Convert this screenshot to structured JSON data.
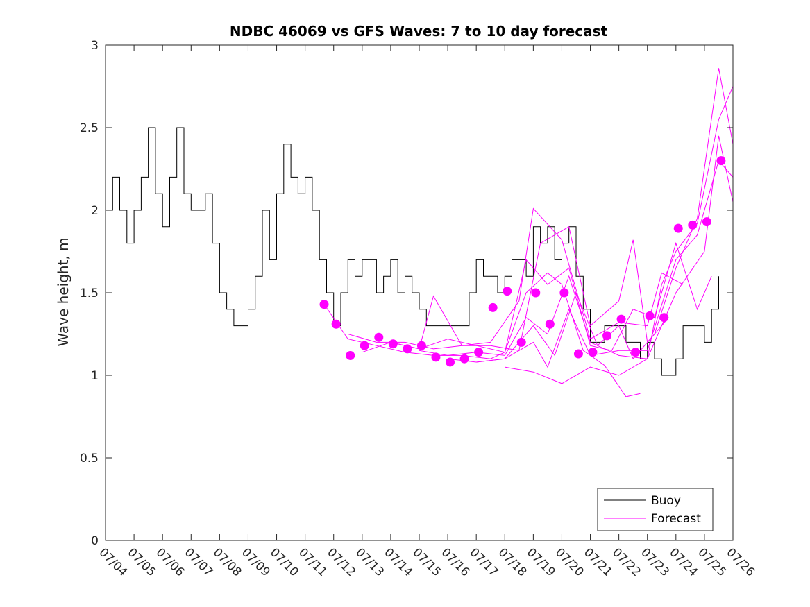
{
  "chart_data": {
    "type": "line",
    "title": "NDBC 46069 vs GFS Waves: 7 to 10 day forecast",
    "xlabel": "",
    "ylabel": "Wave height, m",
    "xlim": [
      "07/04",
      "07/26"
    ],
    "ylim": [
      0,
      3
    ],
    "x_ticks": [
      "07/04",
      "07/05",
      "07/06",
      "07/07",
      "07/08",
      "07/09",
      "07/10",
      "07/11",
      "07/12",
      "07/13",
      "07/14",
      "07/15",
      "07/16",
      "07/17",
      "07/18",
      "07/19",
      "07/20",
      "07/21",
      "07/22",
      "07/23",
      "07/24",
      "07/25",
      "07/26"
    ],
    "y_ticks": [
      0,
      0.5,
      1,
      1.5,
      2,
      2.5,
      3
    ],
    "grid": false,
    "legend": {
      "placement": "bottom-right",
      "entries": [
        "Buoy",
        "Forecast"
      ]
    },
    "series": [
      {
        "name": "Buoy",
        "color": "#000000",
        "style": "line",
        "x": [
          "07/04 00:00",
          "07/04 06:00",
          "07/04 12:00",
          "07/04 18:00",
          "07/05 00:00",
          "07/05 06:00",
          "07/05 12:00",
          "07/05 18:00",
          "07/06 00:00",
          "07/06 06:00",
          "07/06 12:00",
          "07/06 18:00",
          "07/07 00:00",
          "07/07 06:00",
          "07/07 12:00",
          "07/07 18:00",
          "07/08 00:00",
          "07/08 06:00",
          "07/08 12:00",
          "07/08 18:00",
          "07/09 00:00",
          "07/09 06:00",
          "07/09 12:00",
          "07/09 18:00",
          "07/10 00:00",
          "07/10 06:00",
          "07/10 12:00",
          "07/10 18:00",
          "07/11 00:00",
          "07/11 06:00",
          "07/11 12:00",
          "07/11 18:00",
          "07/12 00:00",
          "07/12 06:00",
          "07/12 12:00",
          "07/12 18:00",
          "07/13 00:00",
          "07/13 06:00",
          "07/13 12:00",
          "07/13 18:00",
          "07/14 00:00",
          "07/14 06:00",
          "07/14 12:00",
          "07/14 18:00",
          "07/15 00:00",
          "07/15 06:00",
          "07/15 12:00",
          "07/15 18:00",
          "07/16 00:00",
          "07/16 06:00",
          "07/16 12:00",
          "07/16 18:00",
          "07/17 00:00",
          "07/17 06:00",
          "07/17 12:00",
          "07/17 18:00",
          "07/18 00:00",
          "07/18 06:00",
          "07/18 12:00",
          "07/18 18:00",
          "07/19 00:00",
          "07/19 06:00",
          "07/19 12:00",
          "07/19 18:00",
          "07/20 00:00",
          "07/20 06:00",
          "07/20 12:00",
          "07/20 18:00",
          "07/21 00:00",
          "07/21 06:00",
          "07/21 12:00",
          "07/21 18:00",
          "07/22 00:00",
          "07/22 06:00",
          "07/22 12:00",
          "07/22 18:00",
          "07/23 00:00",
          "07/23 06:00",
          "07/23 12:00",
          "07/23 18:00",
          "07/24 00:00",
          "07/24 06:00",
          "07/24 12:00",
          "07/24 18:00",
          "07/25 00:00",
          "07/25 06:00",
          "07/25 12:00"
        ],
        "y": [
          2.0,
          2.2,
          2.0,
          1.8,
          2.0,
          2.2,
          2.5,
          2.1,
          1.9,
          2.2,
          2.5,
          2.1,
          2.0,
          2.0,
          2.1,
          1.8,
          1.5,
          1.4,
          1.3,
          1.3,
          1.4,
          1.6,
          2.0,
          1.7,
          2.1,
          2.4,
          2.2,
          2.1,
          2.2,
          2.0,
          1.7,
          1.5,
          1.3,
          1.5,
          1.7,
          1.6,
          1.7,
          1.7,
          1.5,
          1.6,
          1.7,
          1.5,
          1.6,
          1.5,
          1.4,
          1.3,
          1.3,
          1.3,
          1.3,
          1.3,
          1.3,
          1.5,
          1.7,
          1.6,
          1.6,
          1.5,
          1.6,
          1.7,
          1.7,
          1.6,
          1.9,
          1.8,
          1.9,
          1.7,
          1.8,
          1.9,
          1.6,
          1.4,
          1.2,
          1.2,
          1.3,
          1.3,
          1.3,
          1.2,
          1.2,
          1.1,
          1.2,
          1.1,
          1.0,
          1.0,
          1.1,
          1.3,
          1.3,
          1.3,
          1.2,
          1.4,
          1.6
        ]
      },
      {
        "name": "Forecast",
        "color": "#ff00ff",
        "style": "line",
        "x": [
          "07/11 16:00",
          "07/12 12:00",
          "07/13 12:00",
          "07/14 12:00",
          "07/15 12:00",
          "07/16 12:00",
          "07/17 12:00",
          "07/18 00:00",
          "07/18 18:00",
          "07/19 12:00",
          "07/20 00:00",
          "07/20 18:00",
          "07/21 12:00",
          "07/22 06:00",
          "07/22 18:00"
        ],
        "y": [
          1.43,
          1.22,
          1.18,
          1.14,
          1.12,
          1.12,
          1.1,
          1.14,
          1.5,
          1.62,
          1.55,
          1.15,
          1.06,
          0.87,
          0.89
        ]
      },
      {
        "name": "Forecast",
        "color": "#ff00ff",
        "style": "line",
        "x": [
          "07/12 12:00",
          "07/13 12:00",
          "07/14 12:00",
          "07/15 12:00",
          "07/16 12:00",
          "07/17 12:00",
          "07/18 12:00",
          "07/19 06:00",
          "07/20 06:00",
          "07/21 00:00",
          "07/22 00:00",
          "07/22 12:00",
          "07/23 00:00",
          "07/23 18:00"
        ],
        "y": [
          1.25,
          1.2,
          1.2,
          1.16,
          1.18,
          1.18,
          1.15,
          1.8,
          1.9,
          1.3,
          1.45,
          1.82,
          1.2,
          1.35
        ]
      },
      {
        "name": "Forecast",
        "color": "#ff00ff",
        "style": "line",
        "x": [
          "07/13 00:00",
          "07/14 00:00",
          "07/15 00:00",
          "07/15 12:00",
          "07/16 12:00",
          "07/17 12:00",
          "07/18 12:00",
          "07/19 00:00",
          "07/20 00:00",
          "07/21 00:00",
          "07/22 00:00",
          "07/23 00:00",
          "07/23 12:00",
          "07/24 06:00"
        ],
        "y": [
          1.14,
          1.2,
          1.16,
          1.48,
          1.18,
          1.2,
          1.45,
          2.01,
          1.82,
          1.22,
          1.32,
          1.3,
          1.62,
          1.55
        ]
      },
      {
        "name": "Forecast",
        "color": "#ff00ff",
        "style": "line",
        "x": [
          "07/14 00:00",
          "07/15 00:00",
          "07/16 00:00",
          "07/17 00:00",
          "07/18 00:00",
          "07/18 18:00",
          "07/19 12:00",
          "07/20 06:00",
          "07/21 00:00",
          "07/21 18:00",
          "07/22 12:00",
          "07/23 06:00",
          "07/24 00:00",
          "07/24 18:00",
          "07/25 06:00"
        ],
        "y": [
          1.2,
          1.16,
          1.22,
          1.18,
          1.14,
          1.7,
          1.55,
          1.65,
          1.18,
          1.15,
          1.4,
          1.35,
          1.8,
          1.4,
          1.6
        ]
      },
      {
        "name": "Forecast",
        "color": "#ff00ff",
        "style": "line",
        "x": [
          "07/15 00:00",
          "07/16 00:00",
          "07/17 00:00",
          "07/18 00:00",
          "07/18 18:00",
          "07/19 12:00",
          "07/20 06:00",
          "07/21 00:00",
          "07/22 00:00",
          "07/23 00:00",
          "07/23 12:00",
          "07/24 00:00",
          "07/24 18:00",
          "07/25 12:00",
          "07/26 00:00"
        ],
        "y": [
          1.15,
          1.12,
          1.14,
          1.12,
          1.35,
          1.25,
          1.6,
          1.2,
          1.12,
          1.1,
          1.55,
          1.75,
          1.92,
          2.55,
          2.75
        ]
      },
      {
        "name": "Forecast",
        "color": "#ff00ff",
        "style": "line",
        "x": [
          "07/16 00:00",
          "07/17 00:00",
          "07/18 00:00",
          "07/19 00:00",
          "07/19 18:00",
          "07/20 12:00",
          "07/21 06:00",
          "07/22 00:00",
          "07/22 12:00",
          "07/23 06:00",
          "07/24 00:00",
          "07/24 18:00",
          "07/25 12:00",
          "07/26 00:00"
        ],
        "y": [
          1.1,
          1.08,
          1.1,
          1.3,
          1.12,
          1.5,
          1.18,
          1.3,
          1.1,
          1.25,
          1.65,
          1.95,
          2.86,
          2.4
        ]
      },
      {
        "name": "Forecast",
        "color": "#ff00ff",
        "style": "line",
        "x": [
          "07/17 00:00",
          "07/18 00:00",
          "07/19 00:00",
          "07/19 12:00",
          "07/20 06:00",
          "07/21 00:00",
          "07/22 00:00",
          "07/23 00:00",
          "07/24 00:00",
          "07/24 18:00",
          "07/25 12:00",
          "07/26 00:00"
        ],
        "y": [
          1.08,
          1.1,
          1.2,
          1.05,
          1.4,
          1.12,
          1.15,
          1.15,
          1.7,
          1.85,
          2.3,
          2.2
        ]
      },
      {
        "name": "Forecast",
        "color": "#ff00ff",
        "style": "line",
        "x": [
          "07/18 00:00",
          "07/19 00:00",
          "07/20 00:00",
          "07/21 00:00",
          "07/22 00:00",
          "07/23 00:00",
          "07/24 00:00",
          "07/25 00:00",
          "07/25 12:00",
          "07/26 00:00"
        ],
        "y": [
          1.05,
          1.02,
          0.95,
          1.05,
          1.0,
          1.1,
          1.5,
          1.75,
          2.45,
          2.05
        ]
      },
      {
        "name": "Forecast",
        "color": "#ff00ff",
        "style": "markers",
        "x": [
          "07/11 16:00",
          "07/12 02:00",
          "07/12 14:00",
          "07/13 02:00",
          "07/13 14:00",
          "07/14 02:00",
          "07/14 14:00",
          "07/15 02:00",
          "07/15 14:00",
          "07/16 02:00",
          "07/16 14:00",
          "07/17 02:00",
          "07/17 14:00",
          "07/18 02:00",
          "07/18 14:00",
          "07/19 02:00",
          "07/19 14:00",
          "07/20 02:00",
          "07/20 14:00",
          "07/21 02:00",
          "07/21 14:00",
          "07/22 02:00",
          "07/22 14:00",
          "07/23 02:00",
          "07/23 14:00",
          "07/24 02:00",
          "07/24 14:00",
          "07/25 02:00",
          "07/25 14:00"
        ],
        "y": [
          1.43,
          1.31,
          1.12,
          1.18,
          1.23,
          1.19,
          1.16,
          1.18,
          1.11,
          1.08,
          1.1,
          1.14,
          1.41,
          1.51,
          1.2,
          1.5,
          1.31,
          1.5,
          1.13,
          1.14,
          1.24,
          1.34,
          1.14,
          1.36,
          1.35,
          1.89,
          1.91,
          1.93,
          2.3
        ]
      }
    ]
  }
}
